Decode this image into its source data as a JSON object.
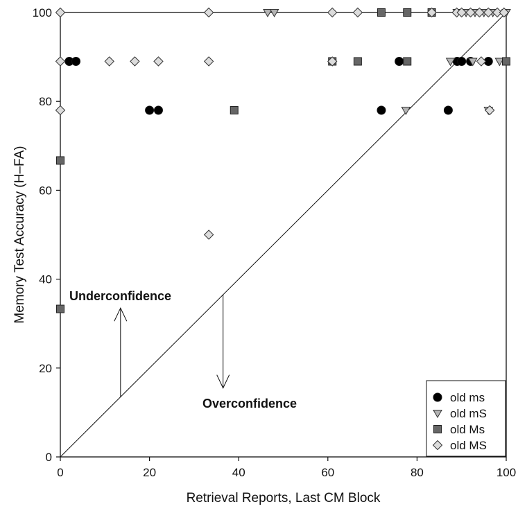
{
  "chart_data": {
    "type": "scatter",
    "xlabel": "Retrieval Reports, Last CM Block",
    "ylabel": "Memory Test Accuracy (H–FA)",
    "xlim": [
      0,
      100
    ],
    "ylim": [
      0,
      100
    ],
    "xticks": [
      0,
      20,
      40,
      60,
      80,
      100
    ],
    "yticks": [
      0,
      20,
      40,
      60,
      80,
      100
    ],
    "grid": false,
    "legend_position": "bottom-right",
    "reference_line": {
      "type": "diagonal",
      "from": [
        0,
        0
      ],
      "to": [
        100,
        100
      ]
    },
    "annotations": [
      {
        "text": "Underconfidence",
        "direction": "up"
      },
      {
        "text": "Overconfidence",
        "direction": "down"
      }
    ],
    "series": [
      {
        "name": "old ms",
        "marker": "circle",
        "color": "#000000",
        "points": [
          [
            2,
            89
          ],
          [
            3.5,
            89
          ],
          [
            20,
            78
          ],
          [
            22,
            78
          ],
          [
            72,
            78
          ],
          [
            76,
            89
          ],
          [
            87,
            78
          ],
          [
            89,
            89
          ],
          [
            90,
            89
          ],
          [
            92,
            89
          ],
          [
            96,
            89
          ]
        ]
      },
      {
        "name": "old mS",
        "marker": "triangle-down",
        "color": "#b4b4b4",
        "points": [
          [
            46.5,
            100
          ],
          [
            48,
            100
          ],
          [
            77.5,
            78
          ],
          [
            87.5,
            89
          ],
          [
            89,
            100
          ],
          [
            91,
            100
          ],
          [
            92.5,
            89
          ],
          [
            93,
            100
          ],
          [
            95,
            100
          ],
          [
            96,
            78
          ],
          [
            97,
            100
          ],
          [
            98.5,
            89
          ],
          [
            100,
            100
          ]
        ]
      },
      {
        "name": "old Ms",
        "marker": "square",
        "color": "#666666",
        "points": [
          [
            0,
            33.3
          ],
          [
            0,
            66.7
          ],
          [
            39,
            78
          ],
          [
            61,
            89
          ],
          [
            66.7,
            89
          ],
          [
            72,
            100
          ],
          [
            77.8,
            100
          ],
          [
            77.8,
            89
          ],
          [
            83.3,
            100
          ],
          [
            100,
            89
          ]
        ]
      },
      {
        "name": "old MS",
        "marker": "diamond",
        "color": "#dcdcdc",
        "points": [
          [
            0,
            100
          ],
          [
            0,
            89
          ],
          [
            0,
            78
          ],
          [
            11,
            89
          ],
          [
            16.7,
            89
          ],
          [
            22,
            89
          ],
          [
            33.3,
            100
          ],
          [
            33.3,
            89
          ],
          [
            33.3,
            50
          ],
          [
            61,
            100
          ],
          [
            61,
            89
          ],
          [
            66.7,
            100
          ],
          [
            83.3,
            100
          ],
          [
            88.9,
            100
          ],
          [
            90,
            100
          ],
          [
            92,
            100
          ],
          [
            94,
            100
          ],
          [
            94.4,
            89
          ],
          [
            96,
            100
          ],
          [
            96.3,
            78
          ],
          [
            98,
            100
          ],
          [
            99.5,
            100
          ]
        ]
      }
    ]
  }
}
